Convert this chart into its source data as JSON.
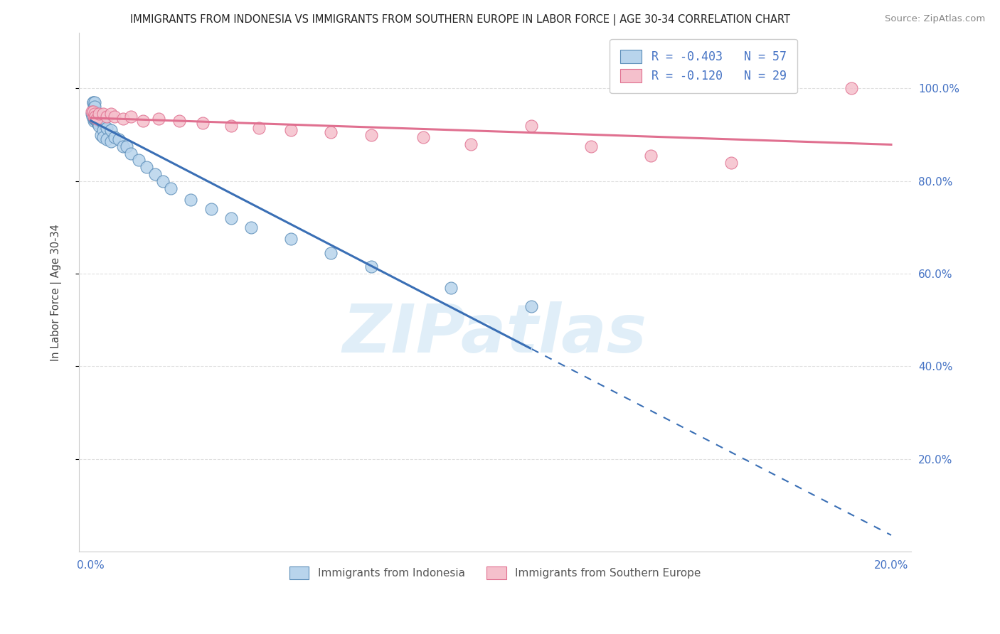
{
  "title": "IMMIGRANTS FROM INDONESIA VS IMMIGRANTS FROM SOUTHERN EUROPE IN LABOR FORCE | AGE 30-34 CORRELATION CHART",
  "source": "Source: ZipAtlas.com",
  "ylabel": "In Labor Force | Age 30-34",
  "ytick_values": [
    0.2,
    0.4,
    0.6,
    0.8,
    1.0
  ],
  "R_indo": -0.403,
  "N_indo": 57,
  "R_seuro": -0.12,
  "N_seuro": 29,
  "indo_fill": "#b8d4ec",
  "indo_edge": "#5B8DB8",
  "seuro_fill": "#f5c0cc",
  "seuro_edge": "#E07090",
  "line_indo": "#3A6FB5",
  "line_seuro": "#E07090",
  "grid_color": "#e0e0e0",
  "tick_color": "#4472C4",
  "bg_color": "#ffffff",
  "watermark": "ZIPatlas",
  "label_indo": "Immigrants from Indonesia",
  "label_seuro": "Immigrants from Southern Europe",
  "indo_x": [
    0.0003,
    0.0004,
    0.0005,
    0.0005,
    0.0006,
    0.0007,
    0.0007,
    0.0008,
    0.0008,
    0.0009,
    0.0009,
    0.001,
    0.001,
    0.001,
    0.0011,
    0.0012,
    0.0012,
    0.0013,
    0.0014,
    0.0015,
    0.0016,
    0.0017,
    0.0018,
    0.0019,
    0.002,
    0.002,
    0.002,
    0.0022,
    0.0025,
    0.0025,
    0.003,
    0.003,
    0.003,
    0.003,
    0.004,
    0.004,
    0.005,
    0.005,
    0.006,
    0.007,
    0.008,
    0.009,
    0.01,
    0.012,
    0.014,
    0.016,
    0.018,
    0.02,
    0.025,
    0.03,
    0.035,
    0.04,
    0.05,
    0.06,
    0.07,
    0.09,
    0.11
  ],
  "indo_y": [
    0.945,
    0.94,
    0.97,
    0.95,
    0.97,
    0.96,
    0.93,
    0.95,
    0.935,
    0.97,
    0.95,
    0.96,
    0.945,
    0.935,
    0.94,
    0.945,
    0.935,
    0.94,
    0.945,
    0.94,
    0.925,
    0.93,
    0.935,
    0.925,
    0.94,
    0.93,
    0.92,
    0.935,
    0.93,
    0.9,
    0.93,
    0.925,
    0.91,
    0.895,
    0.915,
    0.89,
    0.91,
    0.885,
    0.895,
    0.89,
    0.875,
    0.875,
    0.86,
    0.845,
    0.83,
    0.815,
    0.8,
    0.785,
    0.76,
    0.74,
    0.72,
    0.7,
    0.675,
    0.645,
    0.615,
    0.57,
    0.53
  ],
  "s_euro_x": [
    0.0003,
    0.0005,
    0.0007,
    0.001,
    0.0012,
    0.0015,
    0.002,
    0.003,
    0.004,
    0.005,
    0.006,
    0.008,
    0.01,
    0.013,
    0.017,
    0.022,
    0.028,
    0.035,
    0.042,
    0.05,
    0.06,
    0.07,
    0.083,
    0.095,
    0.11,
    0.125,
    0.14,
    0.16,
    0.19
  ],
  "s_euro_y": [
    0.95,
    0.95,
    0.94,
    0.945,
    0.94,
    0.935,
    0.945,
    0.945,
    0.94,
    0.945,
    0.94,
    0.935,
    0.94,
    0.93,
    0.935,
    0.93,
    0.925,
    0.92,
    0.915,
    0.91,
    0.905,
    0.9,
    0.895,
    0.88,
    0.92,
    0.875,
    0.855,
    0.84,
    1.0
  ]
}
